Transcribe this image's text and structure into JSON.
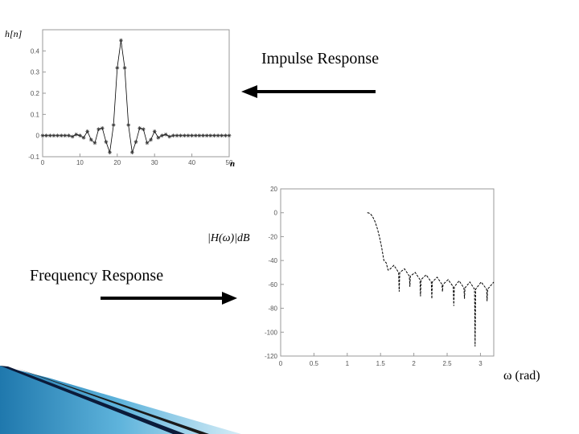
{
  "labels": {
    "impulse": "Impulse Response",
    "frequency": "Frequency Response"
  },
  "colors": {
    "background": "#ffffff",
    "plot_line": "#000000",
    "arrow": "#000000",
    "accent_blue": "#2a86b8",
    "accent_dark": "#0b1b3a"
  },
  "icons": [
    "arrow-left-icon",
    "arrow-right-icon"
  ],
  "chart_data": [
    {
      "type": "line",
      "ylabel": "h[n]",
      "xlabel": "n",
      "xlim": [
        0,
        50
      ],
      "ylim": [
        -0.1,
        0.5
      ],
      "xticks": [
        0,
        10,
        20,
        30,
        40,
        50
      ],
      "xtick_labels": [
        "0",
        "10",
        "20",
        "30",
        "40",
        "50"
      ],
      "yticks": [
        -0.1,
        0,
        0.1,
        0.2,
        0.3,
        0.4
      ],
      "ytick_labels": [
        "-0.1",
        "0",
        "0.1",
        "0.2",
        "0.3",
        "0.4"
      ],
      "grid": false,
      "markers": "asterisk",
      "series": [
        {
          "x": [
            0,
            1,
            2,
            3,
            4,
            5,
            6,
            7,
            8,
            9,
            10,
            11,
            12,
            13,
            14,
            15,
            16,
            17,
            18,
            19,
            20,
            21,
            22,
            23,
            24,
            25,
            26,
            27,
            28,
            29,
            30,
            31,
            32,
            33,
            34,
            35,
            36,
            37,
            38,
            39,
            40,
            41,
            42,
            43,
            44,
            45,
            46,
            47,
            48,
            49,
            50
          ],
          "values": [
            0,
            0,
            0,
            0,
            0,
            0,
            0,
            0,
            -0.005,
            0.005,
            0,
            -0.01,
            0.02,
            -0.02,
            -0.035,
            0.03,
            0.035,
            -0.03,
            -0.08,
            0.05,
            0.32,
            0.45,
            0.32,
            0.05,
            -0.08,
            -0.03,
            0.035,
            0.03,
            -0.035,
            -0.02,
            0.02,
            -0.01,
            0,
            0.005,
            -0.005,
            0,
            0,
            0,
            0,
            0,
            0,
            0,
            0,
            0,
            0,
            0,
            0,
            0,
            0,
            0,
            0
          ]
        }
      ]
    },
    {
      "type": "line",
      "ylabel": "|H(ω)|dB",
      "xlabel": "ω (rad)",
      "xlim": [
        0,
        3.2
      ],
      "ylim": [
        -120,
        20
      ],
      "xticks": [
        0,
        0.5,
        1,
        1.5,
        2,
        2.5,
        3
      ],
      "xtick_labels": [
        "0",
        "0.5",
        "1",
        "1.5",
        "2",
        "2.5",
        "3"
      ],
      "yticks": [
        20,
        0,
        -20,
        -40,
        -60,
        -80,
        -100,
        -120
      ],
      "ytick_labels": [
        "20",
        "0",
        "-20",
        "-40",
        "-60",
        "-80",
        "-100",
        "-120"
      ],
      "grid": false,
      "passband": {
        "omega_start": 1.3,
        "omega_cutoff": 1.55,
        "level_db": 0,
        "edge_db": -40
      },
      "stopband": {
        "nulls_omega": [
          1.62,
          1.78,
          1.94,
          2.1,
          2.27,
          2.43,
          2.6,
          2.76,
          2.92,
          3.1
        ],
        "nulls_db": [
          -48,
          -66,
          -62,
          -70,
          -72,
          -66,
          -78,
          -72,
          -112,
          -74
        ],
        "peaks_db": [
          -42,
          -44,
          -47,
          -50,
          -52,
          -54,
          -56,
          -57,
          -58,
          -58
        ]
      }
    }
  ]
}
